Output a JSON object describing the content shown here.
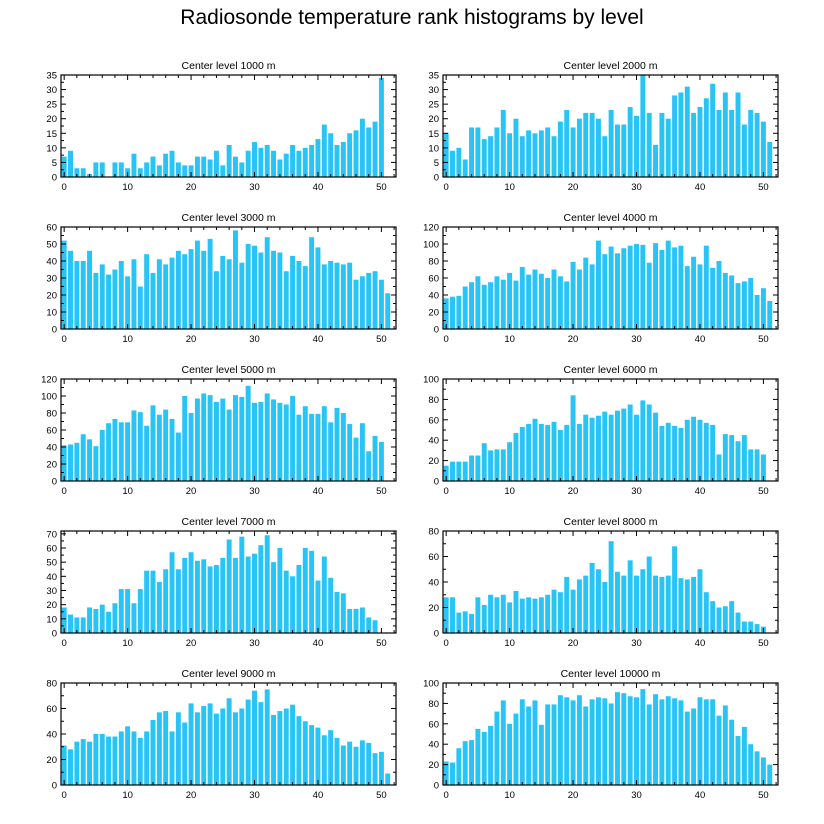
{
  "title": "Radiosonde temperature rank histograms by level",
  "colors": {
    "bar": "#27c4f5",
    "axis": "#000000",
    "background": "#ffffff"
  },
  "chart_data": [
    {
      "type": "bar",
      "title": "Center level 1000 m",
      "x": [
        0,
        1,
        2,
        3,
        4,
        5,
        6,
        7,
        8,
        9,
        10,
        11,
        12,
        13,
        14,
        15,
        16,
        17,
        18,
        19,
        20,
        21,
        22,
        23,
        24,
        25,
        26,
        27,
        28,
        29,
        30,
        31,
        32,
        33,
        34,
        35,
        36,
        37,
        38,
        39,
        40,
        41,
        42,
        43,
        44,
        45,
        46,
        47,
        48,
        49,
        50,
        51
      ],
      "values": [
        7,
        9,
        3,
        3,
        1,
        5,
        5,
        0,
        5,
        5,
        3,
        8,
        3,
        5,
        7,
        4,
        8,
        9,
        5,
        4,
        4,
        7,
        7,
        6,
        9,
        4,
        11,
        7,
        5,
        9,
        12,
        10,
        11,
        9,
        6,
        8,
        11,
        9,
        10,
        11,
        13,
        18,
        15,
        11,
        12,
        15,
        16,
        20,
        17,
        19,
        34,
        0
      ],
      "xlim": [
        -0.5,
        52.3
      ],
      "ylim": [
        0,
        35
      ],
      "xticks": [
        0,
        10,
        20,
        30,
        40,
        50
      ],
      "xticklabels": [
        "0",
        "10",
        "20",
        "30",
        "40",
        "50"
      ],
      "yticks": [
        0,
        5,
        10,
        15,
        20,
        25,
        30,
        35
      ],
      "yticklabels": [
        "0",
        "5",
        "10",
        "15",
        "20",
        "25",
        "30",
        "35"
      ]
    },
    {
      "type": "bar",
      "title": "Center level 2000 m",
      "x": [
        0,
        1,
        2,
        3,
        4,
        5,
        6,
        7,
        8,
        9,
        10,
        11,
        12,
        13,
        14,
        15,
        16,
        17,
        18,
        19,
        20,
        21,
        22,
        23,
        24,
        25,
        26,
        27,
        28,
        29,
        30,
        31,
        32,
        33,
        34,
        35,
        36,
        37,
        38,
        39,
        40,
        41,
        42,
        43,
        44,
        45,
        46,
        47,
        48,
        49,
        50,
        51
      ],
      "values": [
        15,
        9,
        10,
        6,
        17,
        17,
        13,
        14,
        17,
        23,
        15,
        20,
        14,
        16,
        15,
        16,
        17,
        14,
        19,
        23,
        17,
        20,
        22,
        22,
        20,
        14,
        23,
        18,
        18,
        24,
        21,
        35,
        22,
        11,
        22,
        20,
        28,
        29,
        31,
        22,
        24,
        27,
        32,
        23,
        29,
        23,
        29,
        18,
        23,
        22,
        19,
        12
      ],
      "xlim": [
        -0.5,
        52.3
      ],
      "ylim": [
        0,
        35
      ],
      "xticks": [
        0,
        10,
        20,
        30,
        40,
        50
      ],
      "xticklabels": [
        "0",
        "10",
        "20",
        "30",
        "40",
        "50"
      ],
      "yticks": [
        0,
        5,
        10,
        15,
        20,
        25,
        30,
        35
      ],
      "yticklabels": [
        "0",
        "5",
        "10",
        "15",
        "20",
        "25",
        "30",
        "35"
      ]
    },
    {
      "type": "bar",
      "title": "Center level 3000 m",
      "x": [
        0,
        1,
        2,
        3,
        4,
        5,
        6,
        7,
        8,
        9,
        10,
        11,
        12,
        13,
        14,
        15,
        16,
        17,
        18,
        19,
        20,
        21,
        22,
        23,
        24,
        25,
        26,
        27,
        28,
        29,
        30,
        31,
        32,
        33,
        34,
        35,
        36,
        37,
        38,
        39,
        40,
        41,
        42,
        43,
        44,
        45,
        46,
        47,
        48,
        49,
        50,
        51
      ],
      "values": [
        52,
        46,
        40,
        40,
        46,
        33,
        38,
        32,
        35,
        40,
        31,
        41,
        25,
        44,
        33,
        41,
        38,
        42,
        46,
        44,
        47,
        52,
        46,
        53,
        34,
        43,
        41,
        58,
        39,
        50,
        49,
        45,
        54,
        46,
        45,
        34,
        43,
        40,
        37,
        54,
        48,
        38,
        40,
        39,
        38,
        39,
        29,
        31,
        33,
        34,
        29,
        21
      ],
      "xlim": [
        -0.5,
        52.3
      ],
      "ylim": [
        0,
        60
      ],
      "xticks": [
        0,
        10,
        20,
        30,
        40,
        50
      ],
      "xticklabels": [
        "0",
        "10",
        "20",
        "30",
        "40",
        "50"
      ],
      "yticks": [
        0,
        10,
        20,
        30,
        40,
        50,
        60
      ],
      "yticklabels": [
        "0",
        "10",
        "20",
        "30",
        "40",
        "50",
        "60"
      ]
    },
    {
      "type": "bar",
      "title": "Center level 4000 m",
      "x": [
        0,
        1,
        2,
        3,
        4,
        5,
        6,
        7,
        8,
        9,
        10,
        11,
        12,
        13,
        14,
        15,
        16,
        17,
        18,
        19,
        20,
        21,
        22,
        23,
        24,
        25,
        26,
        27,
        28,
        29,
        30,
        31,
        32,
        33,
        34,
        35,
        36,
        37,
        38,
        39,
        40,
        41,
        42,
        43,
        44,
        45,
        46,
        47,
        48,
        49,
        50,
        51
      ],
      "values": [
        36,
        38,
        39,
        50,
        55,
        62,
        52,
        55,
        62,
        58,
        66,
        57,
        73,
        64,
        70,
        65,
        60,
        70,
        62,
        56,
        79,
        70,
        84,
        76,
        104,
        88,
        97,
        89,
        95,
        98,
        100,
        99,
        78,
        101,
        93,
        104,
        96,
        98,
        74,
        85,
        76,
        98,
        72,
        80,
        66,
        63,
        54,
        56,
        60,
        40,
        48,
        33
      ],
      "xlim": [
        -0.5,
        52.3
      ],
      "ylim": [
        0,
        120
      ],
      "xticks": [
        0,
        10,
        20,
        30,
        40,
        50
      ],
      "xticklabels": [
        "0",
        "10",
        "20",
        "30",
        "40",
        "50"
      ],
      "yticks": [
        0,
        20,
        40,
        60,
        80,
        100,
        120
      ],
      "yticklabels": [
        "0",
        "20",
        "40",
        "60",
        "80",
        "100",
        "120"
      ]
    },
    {
      "type": "bar",
      "title": "Center level 5000 m",
      "x": [
        0,
        1,
        2,
        3,
        4,
        5,
        6,
        7,
        8,
        9,
        10,
        11,
        12,
        13,
        14,
        15,
        16,
        17,
        18,
        19,
        20,
        21,
        22,
        23,
        24,
        25,
        26,
        27,
        28,
        29,
        30,
        31,
        32,
        33,
        34,
        35,
        36,
        37,
        38,
        39,
        40,
        41,
        42,
        43,
        44,
        45,
        46,
        47,
        48,
        49,
        50,
        51
      ],
      "values": [
        42,
        43,
        45,
        55,
        49,
        41,
        60,
        68,
        73,
        69,
        69,
        83,
        81,
        65,
        89,
        78,
        84,
        73,
        57,
        100,
        80,
        97,
        103,
        101,
        93,
        97,
        84,
        101,
        99,
        112,
        92,
        93,
        103,
        96,
        92,
        90,
        100,
        78,
        88,
        79,
        79,
        88,
        69,
        86,
        80,
        67,
        51,
        68,
        35,
        53,
        46,
        0
      ],
      "xlim": [
        -0.5,
        52.3
      ],
      "ylim": [
        0,
        120
      ],
      "xticks": [
        0,
        10,
        20,
        30,
        40,
        50
      ],
      "xticklabels": [
        "0",
        "10",
        "20",
        "30",
        "40",
        "50"
      ],
      "yticks": [
        0,
        20,
        40,
        60,
        80,
        100,
        120
      ],
      "yticklabels": [
        "0",
        "20",
        "40",
        "60",
        "80",
        "100",
        "120"
      ]
    },
    {
      "type": "bar",
      "title": "Center level 6000 m",
      "x": [
        0,
        1,
        2,
        3,
        4,
        5,
        6,
        7,
        8,
        9,
        10,
        11,
        12,
        13,
        14,
        15,
        16,
        17,
        18,
        19,
        20,
        21,
        22,
        23,
        24,
        25,
        26,
        27,
        28,
        29,
        30,
        31,
        32,
        33,
        34,
        35,
        36,
        37,
        38,
        39,
        40,
        41,
        42,
        43,
        44,
        45,
        46,
        47,
        48,
        49,
        50,
        51
      ],
      "values": [
        15,
        19,
        19,
        19,
        25,
        25,
        37,
        30,
        31,
        31,
        38,
        47,
        53,
        56,
        61,
        56,
        55,
        58,
        50,
        55,
        84,
        56,
        65,
        62,
        64,
        68,
        65,
        69,
        71,
        75,
        65,
        79,
        75,
        67,
        54,
        57,
        54,
        52,
        60,
        63,
        60,
        57,
        55,
        26,
        46,
        45,
        39,
        45,
        31,
        31,
        26,
        0
      ],
      "xlim": [
        -0.5,
        52.3
      ],
      "ylim": [
        0,
        100
      ],
      "xticks": [
        0,
        10,
        20,
        30,
        40,
        50
      ],
      "xticklabels": [
        "0",
        "10",
        "20",
        "30",
        "40",
        "50"
      ],
      "yticks": [
        0,
        20,
        40,
        60,
        80,
        100
      ],
      "yticklabels": [
        "0",
        "20",
        "40",
        "60",
        "80",
        "100"
      ]
    },
    {
      "type": "bar",
      "title": "Center level 7000 m",
      "x": [
        0,
        1,
        2,
        3,
        4,
        5,
        6,
        7,
        8,
        9,
        10,
        11,
        12,
        13,
        14,
        15,
        16,
        17,
        18,
        19,
        20,
        21,
        22,
        23,
        24,
        25,
        26,
        27,
        28,
        29,
        30,
        31,
        32,
        33,
        34,
        35,
        36,
        37,
        38,
        39,
        40,
        41,
        42,
        43,
        44,
        45,
        46,
        47,
        48,
        49,
        50,
        51
      ],
      "values": [
        18,
        13,
        11,
        11,
        18,
        17,
        20,
        15,
        21,
        31,
        31,
        21,
        31,
        44,
        44,
        36,
        45,
        57,
        45,
        53,
        57,
        51,
        52,
        47,
        48,
        53,
        66,
        53,
        68,
        54,
        56,
        62,
        69,
        50,
        60,
        44,
        40,
        48,
        60,
        58,
        37,
        54,
        39,
        29,
        28,
        17,
        17,
        18,
        11,
        9,
        0,
        0
      ],
      "xlim": [
        -0.5,
        52.3
      ],
      "ylim": [
        0,
        72
      ],
      "xticks": [
        0,
        10,
        20,
        30,
        40,
        50
      ],
      "xticklabels": [
        "0",
        "10",
        "20",
        "30",
        "40",
        "50"
      ],
      "yticks": [
        0,
        10,
        20,
        30,
        40,
        50,
        60,
        70
      ],
      "yticklabels": [
        "0",
        "10",
        "20",
        "30",
        "40",
        "50",
        "60",
        "70"
      ]
    },
    {
      "type": "bar",
      "title": "Center level 8000 m",
      "x": [
        0,
        1,
        2,
        3,
        4,
        5,
        6,
        7,
        8,
        9,
        10,
        11,
        12,
        13,
        14,
        15,
        16,
        17,
        18,
        19,
        20,
        21,
        22,
        23,
        24,
        25,
        26,
        27,
        28,
        29,
        30,
        31,
        32,
        33,
        34,
        35,
        36,
        37,
        38,
        39,
        40,
        41,
        42,
        43,
        44,
        45,
        46,
        47,
        48,
        49,
        50,
        51
      ],
      "values": [
        28,
        28,
        16,
        17,
        15,
        28,
        22,
        30,
        28,
        30,
        24,
        33,
        27,
        28,
        27,
        28,
        30,
        34,
        32,
        44,
        34,
        42,
        45,
        55,
        50,
        40,
        72,
        48,
        45,
        57,
        45,
        50,
        60,
        45,
        44,
        45,
        68,
        43,
        42,
        44,
        50,
        32,
        25,
        20,
        21,
        25,
        16,
        9,
        9,
        7,
        5,
        0
      ],
      "xlim": [
        -0.5,
        52.3
      ],
      "ylim": [
        0,
        80
      ],
      "xticks": [
        0,
        10,
        20,
        30,
        40,
        50
      ],
      "xticklabels": [
        "0",
        "10",
        "20",
        "30",
        "40",
        "50"
      ],
      "yticks": [
        0,
        20,
        40,
        60,
        80
      ],
      "yticklabels": [
        "0",
        "20",
        "40",
        "60",
        "80"
      ]
    },
    {
      "type": "bar",
      "title": "Center level 9000 m",
      "x": [
        0,
        1,
        2,
        3,
        4,
        5,
        6,
        7,
        8,
        9,
        10,
        11,
        12,
        13,
        14,
        15,
        16,
        17,
        18,
        19,
        20,
        21,
        22,
        23,
        24,
        25,
        26,
        27,
        28,
        29,
        30,
        31,
        32,
        33,
        34,
        35,
        36,
        37,
        38,
        39,
        40,
        41,
        42,
        43,
        44,
        45,
        46,
        47,
        48,
        49,
        50,
        51
      ],
      "values": [
        31,
        28,
        34,
        36,
        34,
        40,
        40,
        38,
        38,
        42,
        46,
        42,
        37,
        42,
        51,
        57,
        58,
        42,
        57,
        49,
        64,
        57,
        62,
        64,
        56,
        60,
        68,
        57,
        60,
        67,
        74,
        65,
        75,
        55,
        58,
        60,
        63,
        54,
        50,
        47,
        45,
        39,
        43,
        37,
        31,
        34,
        30,
        35,
        33,
        25,
        26,
        9
      ],
      "xlim": [
        -0.5,
        52.3
      ],
      "ylim": [
        0,
        80
      ],
      "xticks": [
        0,
        10,
        20,
        30,
        40,
        50
      ],
      "xticklabels": [
        "0",
        "10",
        "20",
        "30",
        "40",
        "50"
      ],
      "yticks": [
        0,
        20,
        40,
        60,
        80
      ],
      "yticklabels": [
        "0",
        "20",
        "40",
        "60",
        "80"
      ]
    },
    {
      "type": "bar",
      "title": "Center level 10000 m",
      "x": [
        0,
        1,
        2,
        3,
        4,
        5,
        6,
        7,
        8,
        9,
        10,
        11,
        12,
        13,
        14,
        15,
        16,
        17,
        18,
        19,
        20,
        21,
        22,
        23,
        24,
        25,
        26,
        27,
        28,
        29,
        30,
        31,
        32,
        33,
        34,
        35,
        36,
        37,
        38,
        39,
        40,
        41,
        42,
        43,
        44,
        45,
        46,
        47,
        48,
        49,
        50,
        51
      ],
      "values": [
        23,
        22,
        36,
        43,
        44,
        55,
        52,
        58,
        72,
        83,
        60,
        70,
        84,
        77,
        83,
        59,
        79,
        79,
        88,
        86,
        83,
        88,
        77,
        84,
        86,
        85,
        80,
        91,
        90,
        87,
        86,
        94,
        79,
        89,
        84,
        87,
        85,
        83,
        72,
        75,
        86,
        84,
        84,
        68,
        78,
        64,
        48,
        57,
        40,
        33,
        27,
        20
      ],
      "xlim": [
        -0.5,
        52.3
      ],
      "ylim": [
        0,
        100
      ],
      "xticks": [
        0,
        10,
        20,
        30,
        40,
        50
      ],
      "xticklabels": [
        "0",
        "10",
        "20",
        "30",
        "40",
        "50"
      ],
      "yticks": [
        0,
        20,
        40,
        60,
        80,
        100
      ],
      "yticklabels": [
        "0",
        "20",
        "40",
        "60",
        "80",
        "100"
      ]
    }
  ]
}
